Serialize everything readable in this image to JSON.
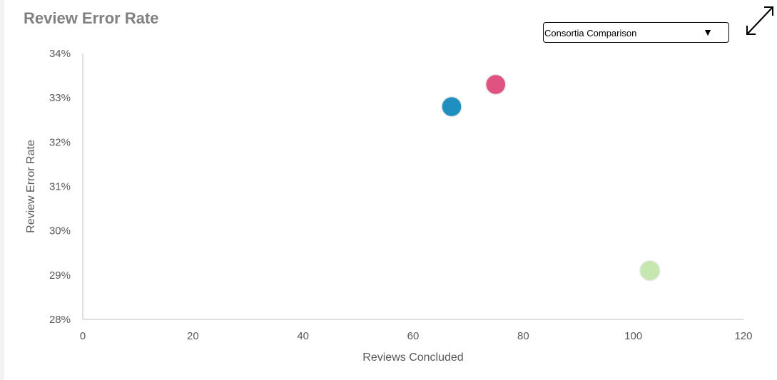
{
  "header": {
    "title": "Review Error Rate",
    "dropdown": {
      "selected": "Consortia Comparison",
      "arrow": "▼"
    },
    "expand_icon": "expand-diagonal-arrows-icon"
  },
  "chart_data": {
    "type": "scatter",
    "title": "Review Error Rate",
    "xlabel": "Reviews Concluded",
    "ylabel": "Review Error Rate",
    "xlim": [
      0,
      120
    ],
    "ylim": [
      28,
      34
    ],
    "x_ticks": [
      0,
      20,
      40,
      60,
      80,
      100,
      120
    ],
    "y_ticks": [
      28,
      29,
      30,
      31,
      32,
      33,
      34
    ],
    "y_tick_labels": [
      "28%",
      "29%",
      "30%",
      "31%",
      "32%",
      "33%",
      "34%"
    ],
    "grid": false,
    "points": [
      {
        "x": 67,
        "y": 32.8,
        "color": "#1f8fc0"
      },
      {
        "x": 75,
        "y": 33.3,
        "color": "#e05280"
      },
      {
        "x": 103,
        "y": 29.1,
        "color": "#c6e7b0"
      }
    ]
  }
}
